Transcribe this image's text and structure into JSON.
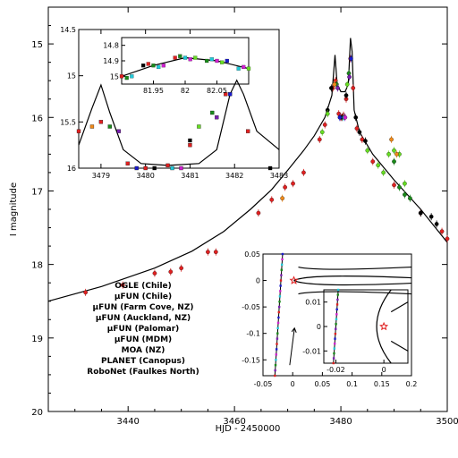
{
  "chart_data": [
    {
      "type": "scatter",
      "xlabel": "HJD - 2450000",
      "ylabel": "I magnitude",
      "xlim": [
        3425,
        3500
      ],
      "ylim": [
        20,
        14.5
      ],
      "y_inverted": true,
      "x_ticks": [
        3440,
        3460,
        3480,
        3500
      ],
      "y_ticks": [
        15,
        16,
        17,
        18,
        19,
        20
      ],
      "legend_placement": "lower-left",
      "series": [
        {
          "name": "OGLE (Chile)",
          "color": "#e02020",
          "points": [
            [
              3432,
              18.38
            ],
            [
              3439,
              18.28
            ],
            [
              3445,
              18.12
            ],
            [
              3448,
              18.1
            ],
            [
              3450,
              18.05
            ],
            [
              3455,
              17.83
            ],
            [
              3456.5,
              17.83
            ],
            [
              3464.5,
              17.3
            ],
            [
              3467,
              17.12
            ],
            [
              3469.5,
              16.95
            ],
            [
              3471,
              16.9
            ],
            [
              3473,
              16.75
            ],
            [
              3476,
              16.3
            ],
            [
              3477,
              16.1
            ],
            [
              3478.5,
              15.6
            ],
            [
              3479,
              15.5
            ],
            [
              3479.6,
              15.95
            ],
            [
              3480,
              16.0
            ],
            [
              3480.5,
              15.97
            ],
            [
              3481,
              15.75
            ],
            [
              3481.8,
              15.2
            ],
            [
              3482.3,
              15.6
            ],
            [
              3483,
              16.15
            ],
            [
              3484,
              16.3
            ],
            [
              3486,
              16.6
            ],
            [
              3490,
              16.92
            ],
            [
              3495,
              17.3
            ],
            [
              3499,
              17.55
            ],
            [
              3500,
              17.65
            ]
          ]
        },
        {
          "name": "μFUN (Chile)",
          "color": "#000000",
          "points": [
            [
              3477.5,
              15.9
            ],
            [
              3478.2,
              15.6
            ],
            [
              3480.2,
              16.0
            ],
            [
              3481,
              15.7
            ],
            [
              3482.8,
              16.0
            ],
            [
              3483.5,
              16.2
            ],
            [
              3484.6,
              16.32
            ],
            [
              3495,
              17.3
            ],
            [
              3497,
              17.35
            ],
            [
              3498,
              17.45
            ]
          ]
        },
        {
          "name": "μFUN (Farm Cove, NZ)",
          "color": "#1a8a1a",
          "points": [
            [
              3479.2,
              15.55
            ],
            [
              3481.5,
              15.4
            ],
            [
              3490,
              16.6
            ],
            [
              3491,
              16.95
            ],
            [
              3492,
              17.05
            ],
            [
              3493,
              17.1
            ]
          ]
        },
        {
          "name": "μFUN (Auckland, NZ)",
          "color": "#7a1fb0",
          "points": [
            [
              3479.4,
              15.6
            ],
            [
              3481.6,
              15.45
            ]
          ]
        },
        {
          "name": "μFUN (Palomar)",
          "color": "#20c8d8",
          "points": [
            [
              3480.6,
              16.0
            ]
          ]
        },
        {
          "name": "μFUN (MDM)",
          "color": "#d020d0",
          "points": [
            [
              3480.8,
              16.0
            ]
          ]
        },
        {
          "name": "MOA (NZ)",
          "color": "#66dd22",
          "points": [
            [
              3476.5,
              16.2
            ],
            [
              3477.5,
              15.95
            ],
            [
              3481.2,
              15.55
            ],
            [
              3485,
              16.45
            ],
            [
              3487,
              16.65
            ],
            [
              3488,
              16.75
            ],
            [
              3489,
              16.5
            ],
            [
              3490,
              16.45
            ],
            [
              3491,
              16.5
            ],
            [
              3492,
              16.9
            ]
          ]
        },
        {
          "name": "PLANET (Canopus)",
          "color": "#1a1acc",
          "points": [
            [
              3479.8,
              16.0
            ],
            [
              3481.9,
              15.2
            ]
          ]
        },
        {
          "name": "RoboNet (Faulkes North)",
          "color": "#f08a1a",
          "points": [
            [
              3469,
              17.1
            ],
            [
              3478.8,
              15.55
            ],
            [
              3489.5,
              16.3
            ],
            [
              3490.5,
              16.5
            ]
          ]
        }
      ],
      "model_curve": [
        [
          3425,
          18.5
        ],
        [
          3435,
          18.3
        ],
        [
          3445,
          18.05
        ],
        [
          3452,
          17.82
        ],
        [
          3458,
          17.55
        ],
        [
          3463,
          17.25
        ],
        [
          3467,
          16.98
        ],
        [
          3470,
          16.72
        ],
        [
          3473,
          16.45
        ],
        [
          3475,
          16.25
        ],
        [
          3477,
          16.0
        ],
        [
          3478.3,
          15.7
        ],
        [
          3478.9,
          15.15
        ],
        [
          3479.3,
          15.55
        ],
        [
          3480,
          15.65
        ],
        [
          3480.8,
          15.65
        ],
        [
          3481.4,
          15.55
        ],
        [
          3481.8,
          14.92
        ],
        [
          3482.1,
          15.1
        ],
        [
          3482.5,
          15.9
        ],
        [
          3483.5,
          16.2
        ],
        [
          3486,
          16.5
        ],
        [
          3490,
          16.85
        ],
        [
          3495,
          17.25
        ],
        [
          3500,
          17.7
        ]
      ]
    },
    {
      "type": "scatter",
      "xlim": [
        3478.5,
        3483
      ],
      "ylim": [
        16,
        14.5
      ],
      "x_ticks": [
        3479,
        3480,
        3481,
        3482,
        3483
      ],
      "y_ticks": [
        14.5,
        15,
        15.5,
        16
      ],
      "y_tick_labels": [
        "14.5",
        "15",
        "15.5",
        "16"
      ],
      "model_curve": [
        [
          3478.5,
          15.75
        ],
        [
          3478.8,
          15.35
        ],
        [
          3479.0,
          15.1
        ],
        [
          3479.2,
          15.4
        ],
        [
          3479.5,
          15.8
        ],
        [
          3479.9,
          15.95
        ],
        [
          3480.5,
          15.97
        ],
        [
          3481.2,
          15.95
        ],
        [
          3481.6,
          15.8
        ],
        [
          3481.9,
          15.2
        ],
        [
          3482.05,
          15.05
        ],
        [
          3482.2,
          15.2
        ],
        [
          3482.5,
          15.6
        ],
        [
          3483,
          15.8
        ]
      ]
    },
    {
      "type": "scatter",
      "xlim": [
        81.9,
        82.1
      ],
      "ylim": [
        15.05,
        14.75
      ],
      "x_ticks": [
        81.95,
        82,
        82.05
      ],
      "y_ticks": [
        14.8,
        14.9,
        15
      ],
      "model_curve": [
        [
          81.9,
          15.0
        ],
        [
          81.95,
          14.93
        ],
        [
          82.0,
          14.88
        ],
        [
          82.05,
          14.9
        ],
        [
          82.1,
          14.95
        ]
      ]
    },
    {
      "type": "line",
      "xlim": [
        -0.05,
        0.2
      ],
      "ylim": [
        -0.18,
        0.05
      ],
      "x_ticks": [
        -0.05,
        0,
        0.05,
        0.1,
        0.15,
        0.2
      ],
      "y_ticks": [
        -0.15,
        -0.1,
        -0.05,
        0,
        0.05
      ],
      "x_tick_labels": [
        "-0.05",
        "0",
        "0.05",
        "0.1",
        "0.15",
        "0.2"
      ],
      "y_tick_labels": [
        "-0.15",
        "-0.1",
        "-0.05",
        "0",
        "0.05"
      ]
    },
    {
      "type": "line",
      "xlim": [
        -0.025,
        0.01
      ],
      "ylim": [
        -0.015,
        0.015
      ],
      "x_ticks": [
        -0.02,
        0
      ],
      "y_ticks": [
        -0.01,
        0,
        0.01
      ],
      "x_tick_labels": [
        "-0.02",
        "0"
      ],
      "y_tick_labels": [
        "-0.01",
        "0",
        "0.01"
      ]
    }
  ]
}
